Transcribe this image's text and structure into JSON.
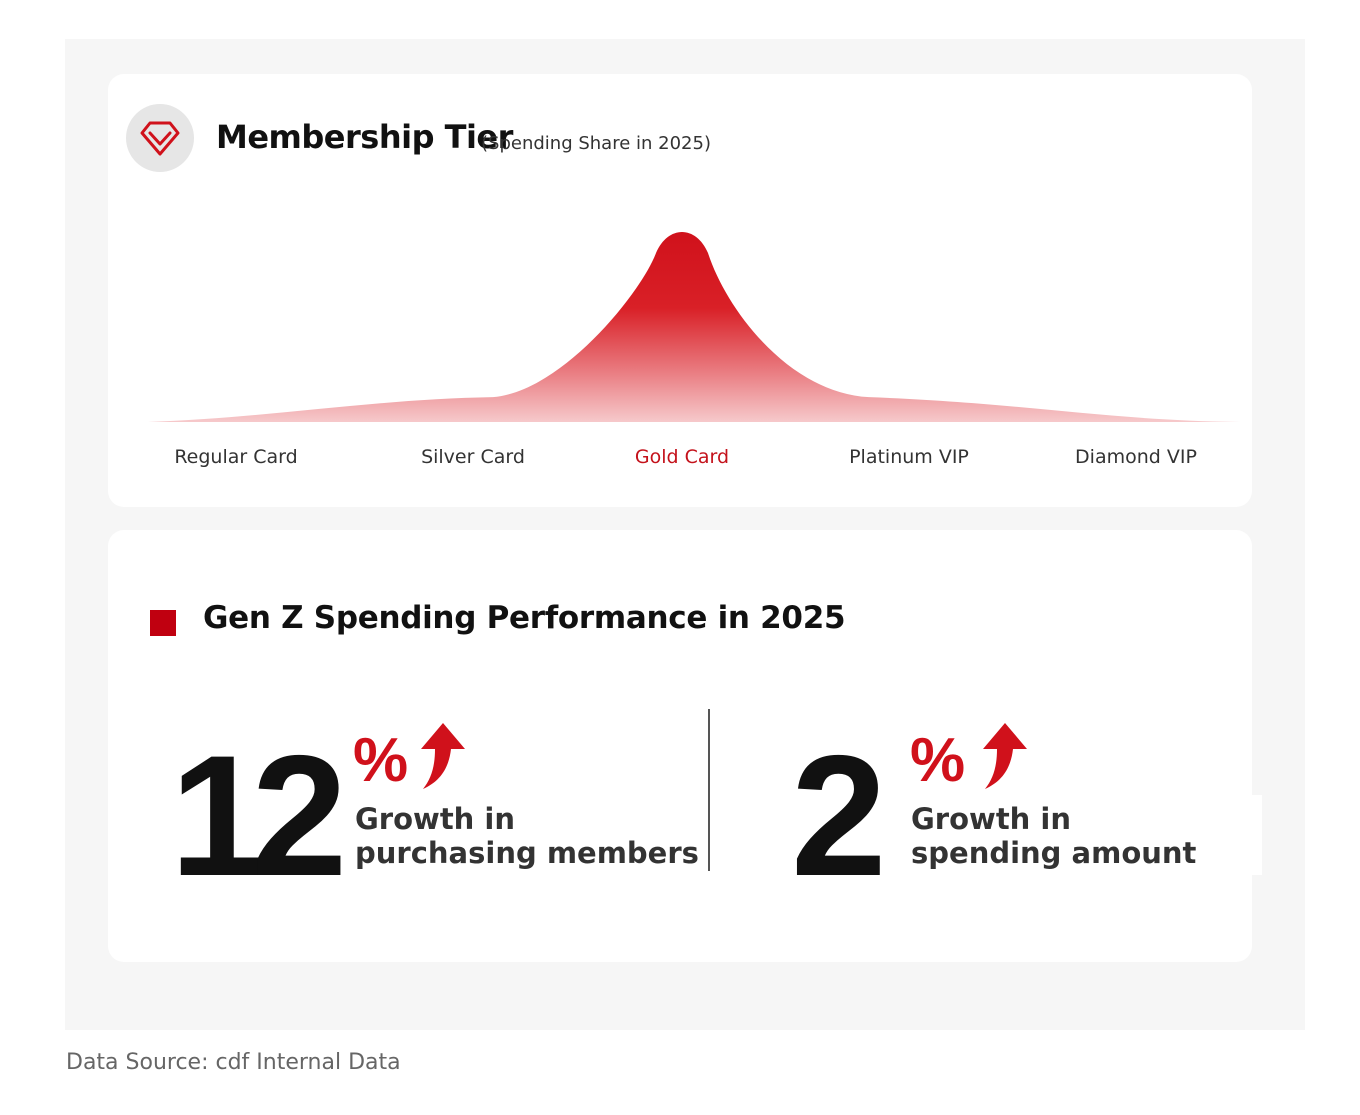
{
  "tier_card": {
    "icon": "diamond-gem-icon",
    "title": "Membership Tier",
    "subtitle": "(Spending Share in 2025)"
  },
  "chart_data": {
    "type": "area",
    "title": "Membership Tier",
    "subtitle": "(Spending Share in 2025)",
    "categories": [
      "Regular Card",
      "Silver Card",
      "Gold Card",
      "Platinum VIP",
      "Diamond VIP"
    ],
    "highlight_category": "Gold Card",
    "relative_values": [
      3,
      13,
      100,
      13,
      3
    ],
    "grid": false,
    "legend": "none",
    "colors": {
      "fill_top": "#d0111b",
      "fill_bottom": "#f4c2c4",
      "highlight_label": "#c4121b"
    }
  },
  "genz": {
    "title": "Gen Z Spending Performance in 2025",
    "accent_color": "#c00010",
    "stats": [
      {
        "value": "12",
        "unit": "%",
        "trend_icon": "up-arrow-icon",
        "line1": "Growth in",
        "line2": "purchasing members"
      },
      {
        "value": "2",
        "unit": "%",
        "trend_icon": "up-arrow-icon",
        "line1": "Growth in",
        "line2": "spending amount"
      }
    ]
  },
  "footer": {
    "source": "Data Source: cdf Internal Data"
  }
}
